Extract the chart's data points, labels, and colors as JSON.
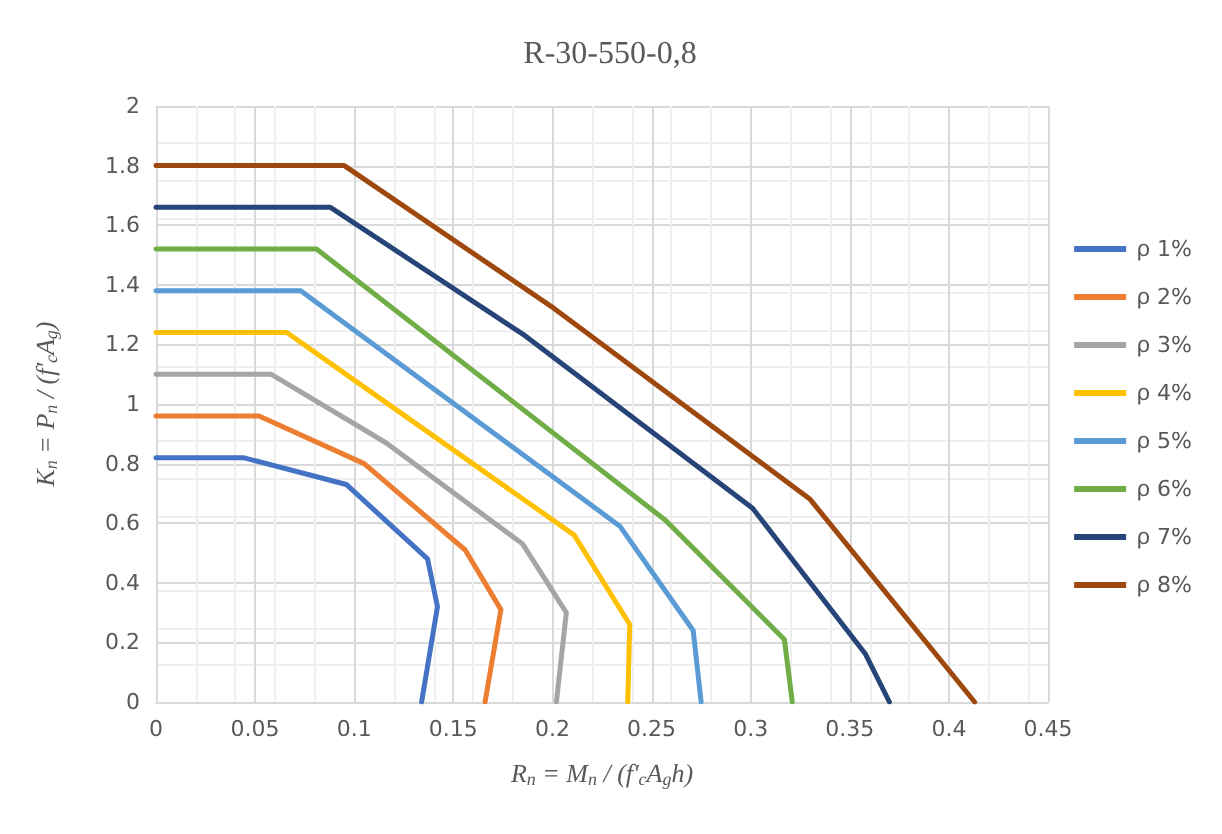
{
  "chart_data": {
    "type": "line",
    "title": "R-30-550-0,8",
    "xlabel": "R$_{n}$ = M$_{n}$ / (f'$_{c}$A$_{g}$h)",
    "ylabel": "K$_{n}$ = P$_{n}$ / (f'$_{c}$A$_{g}$)",
    "xlim": [
      0,
      0.45
    ],
    "xticks": [
      0,
      0.05,
      0.1,
      0.15,
      0.2,
      0.25,
      0.3,
      0.35,
      0.4,
      0.45
    ],
    "ylim": [
      0,
      2
    ],
    "yticks": [
      0,
      0.2,
      0.4,
      0.6,
      0.8,
      1,
      1.2,
      1.4,
      1.6,
      1.8,
      2
    ],
    "grid": true,
    "legend": "right",
    "marker": "none",
    "line_style": "solid",
    "series": [
      {
        "name": "ρ 1%",
        "color": "#4472c4",
        "x": [
          0,
          0.044,
          0.096,
          0.137,
          0.142,
          0.134
        ],
        "values": [
          0.82,
          0.82,
          0.73,
          0.48,
          0.32,
          0
        ]
      },
      {
        "name": "ρ 2%",
        "color": "#ed7d31",
        "x": [
          0,
          0.052,
          0.105,
          0.156,
          0.174,
          0.166
        ],
        "values": [
          0.96,
          0.96,
          0.8,
          0.51,
          0.31,
          0
        ]
      },
      {
        "name": "ρ 3%",
        "color": "#a5a5a5",
        "x": [
          0,
          0.058,
          0.116,
          0.185,
          0.207,
          0.202
        ],
        "values": [
          1.1,
          1.1,
          0.87,
          0.53,
          0.3,
          0
        ]
      },
      {
        "name": "ρ 4%",
        "color": "#ffc000",
        "x": [
          0,
          0.066,
          0.1,
          0.211,
          0.239,
          0.238
        ],
        "values": [
          1.24,
          1.24,
          1.08,
          0.56,
          0.26,
          0
        ]
      },
      {
        "name": "ρ 5%",
        "color": "#5b9bd5",
        "x": [
          0,
          0.073,
          0.234,
          0.271,
          0.275
        ],
        "values": [
          1.38,
          1.38,
          0.59,
          0.24,
          0
        ]
      },
      {
        "name": "ρ 6%",
        "color": "#70ad47",
        "x": [
          0,
          0.081,
          0.257,
          0.317,
          0.321
        ],
        "values": [
          1.52,
          1.52,
          0.61,
          0.21,
          0
        ]
      },
      {
        "name": "ρ 7%",
        "color": "#264478",
        "x": [
          0,
          0.088,
          0.186,
          0.301,
          0.358,
          0.37
        ],
        "values": [
          1.66,
          1.66,
          1.23,
          0.65,
          0.16,
          0
        ]
      },
      {
        "name": "ρ 8%",
        "color": "#9e480e",
        "x": [
          0,
          0.095,
          0.201,
          0.33,
          0.413
        ],
        "values": [
          1.8,
          1.8,
          1.32,
          0.68,
          0
        ]
      }
    ]
  }
}
